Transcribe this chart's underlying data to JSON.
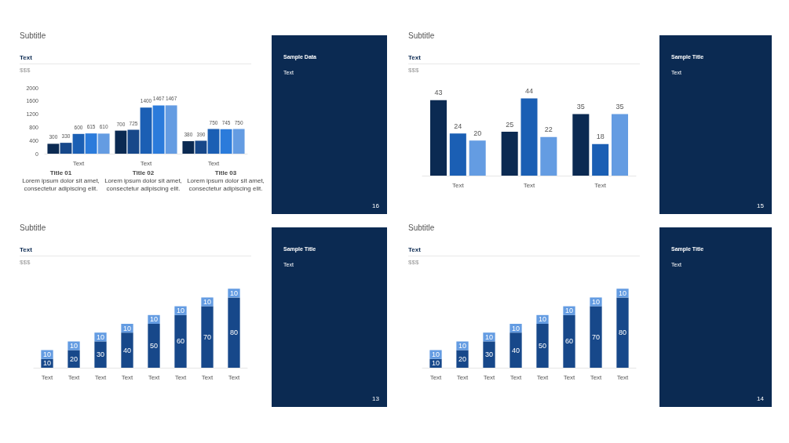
{
  "chart_data": [
    {
      "type": "bar",
      "title": "Subtitle",
      "subtitle": "Text",
      "ylabel": "$$$",
      "categories": [
        "Text",
        "Text",
        "Text"
      ],
      "ylim": [
        0,
        2000
      ],
      "yticks": [
        0,
        400,
        800,
        1200,
        1600,
        2000
      ],
      "data_labels": true,
      "series": [
        {
          "color": "#0b2a52",
          "values": [
            300,
            700,
            380
          ]
        },
        {
          "color": "#17488a",
          "values": [
            330,
            725,
            390
          ]
        },
        {
          "color": "#1b5fb4",
          "values": [
            600,
            1400,
            750
          ]
        },
        {
          "color": "#2b7bdb",
          "values": [
            615,
            1467,
            745
          ]
        },
        {
          "color": "#649ce2",
          "values": [
            610,
            1467,
            750
          ]
        }
      ],
      "annotations": [
        "Title 01",
        "Lorem ipsum dolor sit amet, consectetur adipiscing elit.",
        "Title 02",
        "Lorem ipsum dolor sit amet, consectetur adipiscing elit.",
        "Title 03",
        "Lorem ipsum dolor sit amet, consectetur adipiscing elit."
      ]
    },
    {
      "type": "other",
      "title": "Sample Data",
      "subtitle": "Text",
      "annotations": [
        "16"
      ]
    },
    {
      "type": "bar",
      "title": "Subtitle",
      "subtitle": "Text",
      "ylabel": "$$$",
      "categories": [
        "Text",
        "Text",
        "Text"
      ],
      "data_labels": true,
      "tick_labels": "x",
      "series": [
        {
          "color": "#0b2a52",
          "values": [
            43,
            25,
            35
          ]
        },
        {
          "color": "#1b5fb4",
          "values": [
            24,
            44,
            18
          ]
        },
        {
          "color": "#649ce2",
          "values": [
            20,
            22,
            35
          ]
        }
      ]
    },
    {
      "type": "other",
      "title": "Sample Title",
      "subtitle": "Text",
      "annotations": [
        "15"
      ]
    },
    {
      "type": "bar",
      "title": "Subtitle",
      "subtitle": "Text",
      "ylabel": "$$$",
      "categories": [
        "Text",
        "Text",
        "Text",
        "Text",
        "Text",
        "Text",
        "Text",
        "Text"
      ],
      "stacked": true,
      "data_labels": true,
      "tick_labels": "x",
      "series": [
        {
          "color": "#17488a",
          "values": [
            10,
            20,
            30,
            40,
            50,
            60,
            70,
            80
          ]
        },
        {
          "color": "#649ce2",
          "values": [
            10,
            10,
            10,
            10,
            10,
            10,
            10,
            10
          ]
        }
      ]
    },
    {
      "type": "other",
      "title": "Sample Title",
      "subtitle": "Text",
      "annotations": [
        "13"
      ]
    },
    {
      "type": "bar",
      "title": "Subtitle",
      "subtitle": "Text",
      "ylabel": "$$$",
      "categories": [
        "Text",
        "Text",
        "Text",
        "Text",
        "Text",
        "Text",
        "Text",
        "Text"
      ],
      "stacked": true,
      "data_labels": true,
      "tick_labels": "x",
      "series": [
        {
          "color": "#17488a",
          "values": [
            10,
            20,
            30,
            40,
            50,
            60,
            70,
            80
          ]
        },
        {
          "color": "#649ce2",
          "values": [
            10,
            10,
            10,
            10,
            10,
            10,
            10,
            10
          ]
        }
      ]
    },
    {
      "type": "other",
      "title": "Sample Title",
      "subtitle": "Text",
      "annotations": [
        "14"
      ]
    }
  ]
}
